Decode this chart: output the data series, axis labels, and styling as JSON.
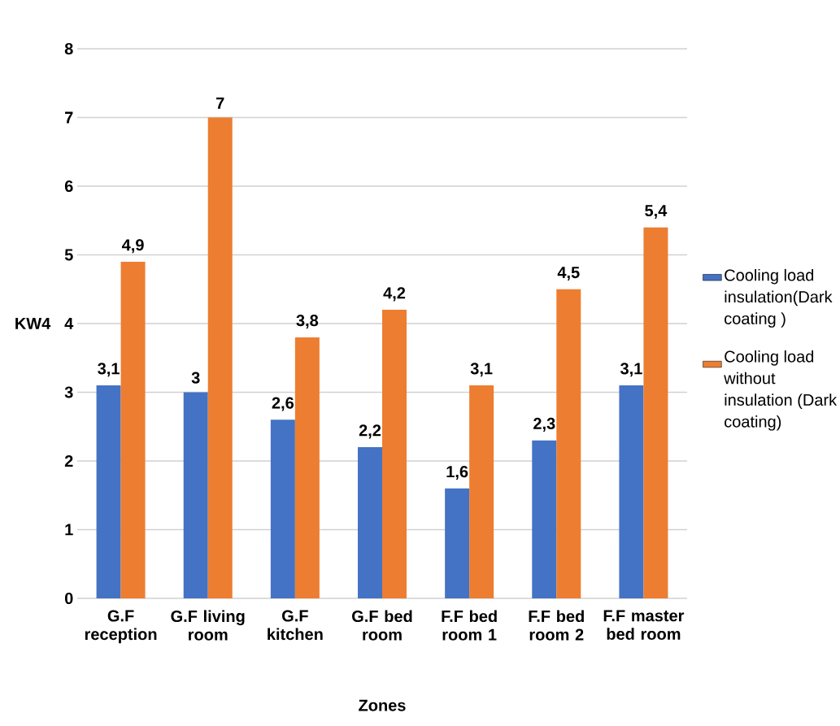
{
  "chart_data": {
    "type": "bar",
    "xlabel": "Zones",
    "ylabel": "KW4",
    "categories": [
      "G.F reception",
      "G.F living room",
      "G.F kitchen",
      "G.F bed room",
      "F.F bed room 1",
      "F.F bed room 2",
      "F.F master bed room"
    ],
    "series": [
      {
        "name": "Cooling load insulation(Dark coating )",
        "color": "#4472c4",
        "values": [
          3.1,
          3,
          2.6,
          2.2,
          1.6,
          2.3,
          3.1
        ],
        "value_labels": [
          "3,1",
          "3",
          "2,6",
          "2,2",
          "1,6",
          "2,3",
          "3,1"
        ]
      },
      {
        "name": "Cooling load without insulation (Dark coating)",
        "color": "#ed7d31",
        "values": [
          4.9,
          7,
          3.8,
          4.2,
          3.1,
          4.5,
          5.4
        ],
        "value_labels": [
          "4,9",
          "7",
          "3,8",
          "4,2",
          "3,1",
          "4,5",
          "5,4"
        ]
      }
    ],
    "ylim": [
      0,
      8
    ],
    "yticks": [
      0,
      1,
      2,
      3,
      4,
      5,
      6,
      7,
      8
    ],
    "grid": "y",
    "legend": "right"
  }
}
